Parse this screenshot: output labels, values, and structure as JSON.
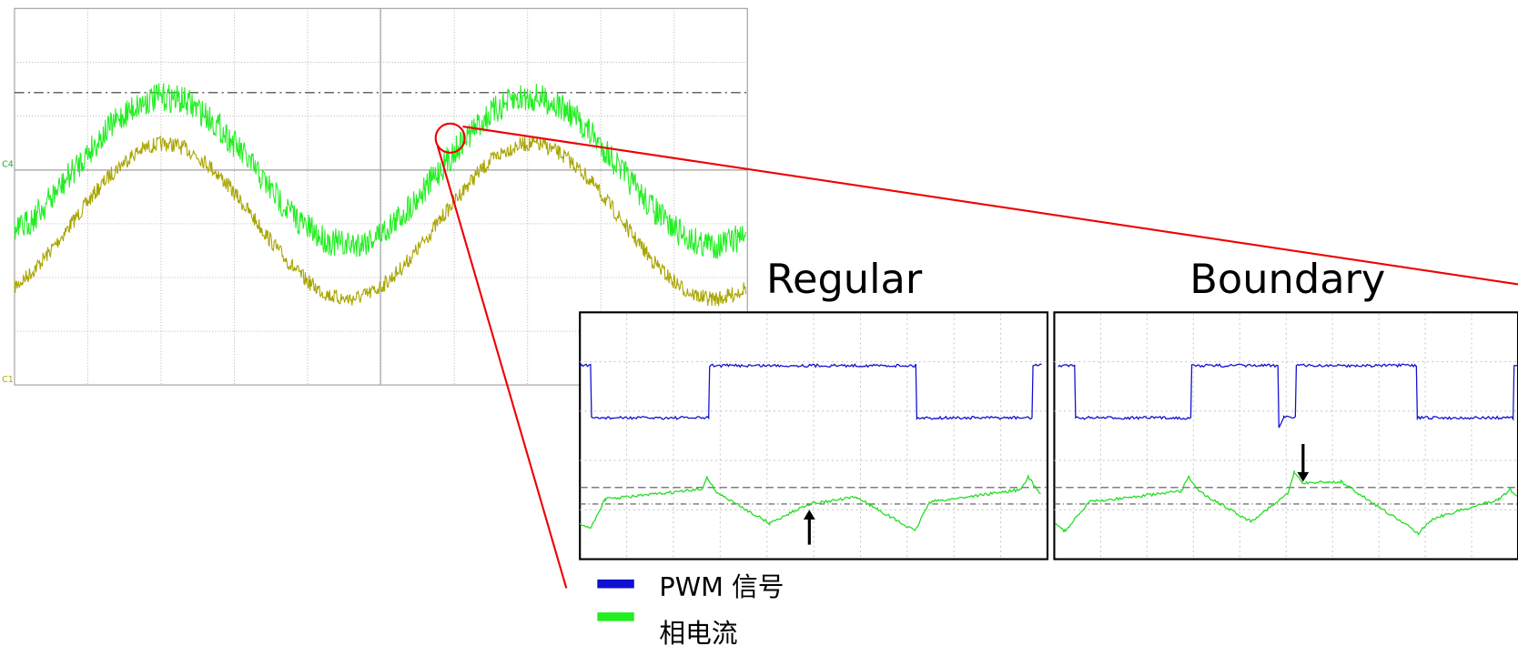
{
  "titles": {
    "regular": "Regular",
    "boundary": "Boundary"
  },
  "legend": [
    {
      "label": "PWM 信号"
    },
    {
      "label": "相电流"
    }
  ],
  "scope": {
    "channel_labels": [
      "C4",
      "C1"
    ]
  }
}
